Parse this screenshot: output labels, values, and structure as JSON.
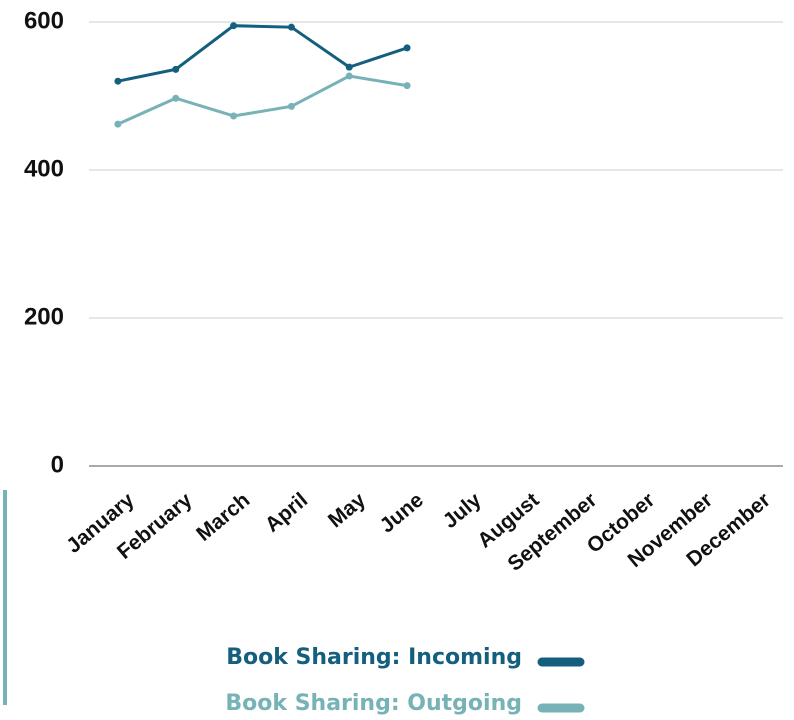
{
  "chart_data": {
    "type": "line",
    "categories": [
      "January",
      "February",
      "March",
      "April",
      "May",
      "June",
      "July",
      "August",
      "September",
      "October",
      "November",
      "December"
    ],
    "series": [
      {
        "name": "Book Sharing: Incoming",
        "color": "#135f7d",
        "values": [
          520,
          536,
          595,
          593,
          539,
          565,
          null,
          null,
          null,
          null,
          null,
          null
        ]
      },
      {
        "name": "Book Sharing: Outgoing",
        "color": "#77b2b7",
        "values": [
          462,
          497,
          473,
          486,
          527,
          514,
          null,
          null,
          null,
          null,
          null,
          null
        ]
      }
    ],
    "ylim": [
      0,
      600
    ],
    "yticks": [
      0,
      200,
      400,
      600
    ],
    "grid": true,
    "legend": "bottom"
  }
}
